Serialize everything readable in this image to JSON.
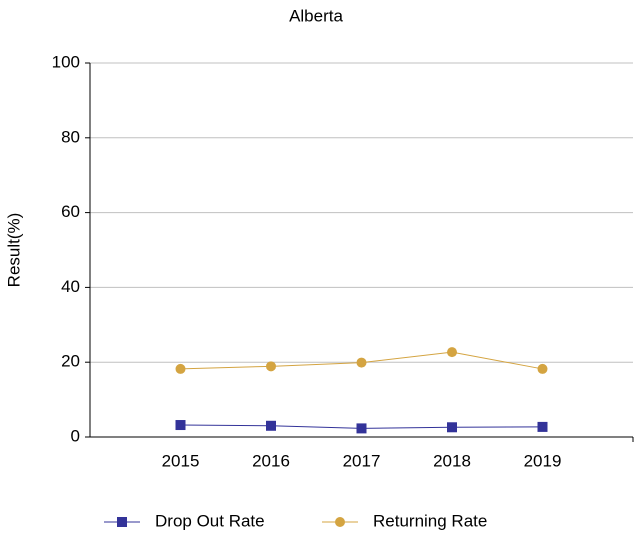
{
  "chart_data": {
    "type": "line",
    "title": "Alberta",
    "y_label": "Result(%)",
    "categories": [
      "2015",
      "2016",
      "2017",
      "2018",
      "2019"
    ],
    "series": [
      {
        "name": "Drop Out Rate",
        "color": "#333399",
        "marker": "square",
        "values": [
          3.2,
          3.0,
          2.3,
          2.6,
          2.7
        ]
      },
      {
        "name": "Returning Rate",
        "color": "#d4a441",
        "marker": "circle",
        "values": [
          18.2,
          18.9,
          19.9,
          22.7,
          18.2
        ]
      }
    ],
    "ylim": [
      0,
      100
    ],
    "yticks": [
      0,
      20,
      40,
      60,
      80,
      100
    ],
    "grid": true,
    "legend": "bottom"
  }
}
